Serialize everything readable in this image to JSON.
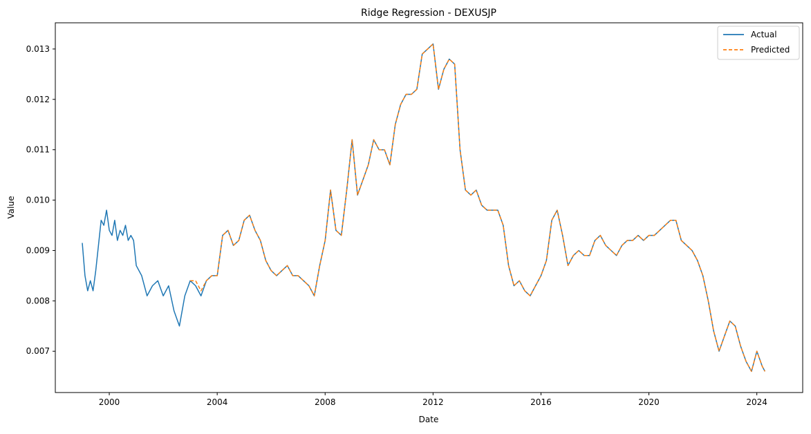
{
  "chart_data": {
    "type": "line",
    "title": "Ridge Regression - DEXUSJP",
    "xlabel": "Date",
    "ylabel": "Value",
    "xlim": [
      1998.0,
      2025.7
    ],
    "ylim": [
      0.00618,
      0.01352
    ],
    "x_ticks": [
      2000,
      2004,
      2008,
      2012,
      2016,
      2020,
      2024
    ],
    "x_tick_labels": [
      "2000",
      "2004",
      "2008",
      "2012",
      "2016",
      "2020",
      "2024"
    ],
    "y_ticks": [
      0.007,
      0.008,
      0.009,
      0.01,
      0.011,
      0.012,
      0.013
    ],
    "y_tick_labels": [
      "0.007",
      "0.008",
      "0.009",
      "0.010",
      "0.011",
      "0.012",
      "0.013"
    ],
    "grid": false,
    "legend": {
      "position": "top-right"
    },
    "series": [
      {
        "name": "Actual",
        "color": "#1f77b4",
        "style": "solid",
        "x": [
          1999.0,
          1999.1,
          1999.2,
          1999.3,
          1999.4,
          1999.5,
          1999.6,
          1999.7,
          1999.8,
          1999.9,
          2000.0,
          2000.1,
          2000.2,
          2000.3,
          2000.4,
          2000.5,
          2000.6,
          2000.7,
          2000.8,
          2000.9,
          2001.0,
          2001.2,
          2001.4,
          2001.6,
          2001.8,
          2002.0,
          2002.2,
          2002.4,
          2002.6,
          2002.8,
          2003.0,
          2003.2,
          2003.4,
          2003.6,
          2003.8,
          2004.0,
          2004.2,
          2004.4,
          2004.6,
          2004.8,
          2005.0,
          2005.2,
          2005.4,
          2005.6,
          2005.8,
          2006.0,
          2006.2,
          2006.4,
          2006.6,
          2006.8,
          2007.0,
          2007.2,
          2007.4,
          2007.6,
          2007.8,
          2008.0,
          2008.2,
          2008.4,
          2008.6,
          2008.8,
          2009.0,
          2009.2,
          2009.4,
          2009.6,
          2009.8,
          2010.0,
          2010.2,
          2010.4,
          2010.6,
          2010.8,
          2011.0,
          2011.2,
          2011.4,
          2011.6,
          2011.8,
          2012.0,
          2012.2,
          2012.4,
          2012.6,
          2012.8,
          2013.0,
          2013.2,
          2013.4,
          2013.6,
          2013.8,
          2014.0,
          2014.2,
          2014.4,
          2014.6,
          2014.8,
          2015.0,
          2015.2,
          2015.4,
          2015.6,
          2015.8,
          2016.0,
          2016.2,
          2016.4,
          2016.6,
          2016.8,
          2017.0,
          2017.2,
          2017.4,
          2017.6,
          2017.8,
          2018.0,
          2018.2,
          2018.4,
          2018.6,
          2018.8,
          2019.0,
          2019.2,
          2019.4,
          2019.6,
          2019.8,
          2020.0,
          2020.2,
          2020.4,
          2020.6,
          2020.8,
          2021.0,
          2021.2,
          2021.4,
          2021.6,
          2021.8,
          2022.0,
          2022.2,
          2022.4,
          2022.6,
          2022.8,
          2023.0,
          2023.2,
          2023.4,
          2023.6,
          2023.8,
          2024.0,
          2024.2,
          2024.3
        ],
        "y": [
          0.00915,
          0.0085,
          0.0082,
          0.0084,
          0.0082,
          0.0086,
          0.0091,
          0.0096,
          0.0095,
          0.0098,
          0.0094,
          0.0093,
          0.0096,
          0.0092,
          0.0094,
          0.0093,
          0.0095,
          0.0092,
          0.0093,
          0.0092,
          0.0087,
          0.0085,
          0.0081,
          0.0083,
          0.0084,
          0.0081,
          0.0083,
          0.0078,
          0.0075,
          0.0081,
          0.0084,
          0.0083,
          0.0081,
          0.0084,
          0.0085,
          0.0085,
          0.0093,
          0.0094,
          0.0091,
          0.0092,
          0.0096,
          0.0097,
          0.0094,
          0.0092,
          0.0088,
          0.0086,
          0.0085,
          0.0086,
          0.0087,
          0.0085,
          0.0085,
          0.0084,
          0.0083,
          0.0081,
          0.0087,
          0.0092,
          0.0102,
          0.0094,
          0.0093,
          0.0102,
          0.0112,
          0.0101,
          0.0104,
          0.0107,
          0.0112,
          0.011,
          0.011,
          0.0107,
          0.0115,
          0.0119,
          0.0121,
          0.0121,
          0.0122,
          0.0129,
          0.013,
          0.0131,
          0.0122,
          0.0126,
          0.0128,
          0.0127,
          0.011,
          0.0102,
          0.0101,
          0.0102,
          0.0099,
          0.0098,
          0.0098,
          0.0098,
          0.0095,
          0.0087,
          0.0083,
          0.0084,
          0.0082,
          0.0081,
          0.0083,
          0.0085,
          0.0088,
          0.0096,
          0.0098,
          0.0093,
          0.0087,
          0.0089,
          0.009,
          0.0089,
          0.0089,
          0.0092,
          0.0093,
          0.0091,
          0.009,
          0.0089,
          0.0091,
          0.0092,
          0.0092,
          0.0093,
          0.0092,
          0.0093,
          0.0093,
          0.0094,
          0.0095,
          0.0096,
          0.0096,
          0.0092,
          0.0091,
          0.009,
          0.0088,
          0.0085,
          0.008,
          0.0074,
          0.007,
          0.0073,
          0.0076,
          0.0075,
          0.0071,
          0.0068,
          0.0066,
          0.007,
          0.0067,
          0.0066
        ]
      },
      {
        "name": "Predicted",
        "color": "#ff7f0e",
        "style": "dashed",
        "x": [
          2003.0,
          2003.2,
          2003.4,
          2003.6,
          2003.8,
          2004.0,
          2004.2,
          2004.4,
          2004.6,
          2004.8,
          2005.0,
          2005.2,
          2005.4,
          2005.6,
          2005.8,
          2006.0,
          2006.2,
          2006.4,
          2006.6,
          2006.8,
          2007.0,
          2007.2,
          2007.4,
          2007.6,
          2007.8,
          2008.0,
          2008.2,
          2008.4,
          2008.6,
          2008.8,
          2009.0,
          2009.2,
          2009.4,
          2009.6,
          2009.8,
          2010.0,
          2010.2,
          2010.4,
          2010.6,
          2010.8,
          2011.0,
          2011.2,
          2011.4,
          2011.6,
          2011.8,
          2012.0,
          2012.2,
          2012.4,
          2012.6,
          2012.8,
          2013.0,
          2013.2,
          2013.4,
          2013.6,
          2013.8,
          2014.0,
          2014.2,
          2014.4,
          2014.6,
          2014.8,
          2015.0,
          2015.2,
          2015.4,
          2015.6,
          2015.8,
          2016.0,
          2016.2,
          2016.4,
          2016.6,
          2016.8,
          2017.0,
          2017.2,
          2017.4,
          2017.6,
          2017.8,
          2018.0,
          2018.2,
          2018.4,
          2018.6,
          2018.8,
          2019.0,
          2019.2,
          2019.4,
          2019.6,
          2019.8,
          2020.0,
          2020.2,
          2020.4,
          2020.6,
          2020.8,
          2021.0,
          2021.2,
          2021.4,
          2021.6,
          2021.8,
          2022.0,
          2022.2,
          2022.4,
          2022.6,
          2022.8,
          2023.0,
          2023.2,
          2023.4,
          2023.6,
          2023.8,
          2024.0,
          2024.2,
          2024.3
        ],
        "y": [
          0.0084,
          0.0084,
          0.0082,
          0.0084,
          0.0085,
          0.0085,
          0.0093,
          0.0094,
          0.0091,
          0.0092,
          0.0096,
          0.0097,
          0.0094,
          0.0092,
          0.0088,
          0.0086,
          0.0085,
          0.0086,
          0.0087,
          0.0085,
          0.0085,
          0.0084,
          0.0083,
          0.0081,
          0.0087,
          0.0092,
          0.0102,
          0.0094,
          0.0093,
          0.0102,
          0.0112,
          0.0101,
          0.0104,
          0.0107,
          0.0112,
          0.011,
          0.011,
          0.0107,
          0.0115,
          0.0119,
          0.0121,
          0.0121,
          0.0122,
          0.0129,
          0.013,
          0.0131,
          0.0122,
          0.0126,
          0.0128,
          0.0127,
          0.011,
          0.0102,
          0.0101,
          0.0102,
          0.0099,
          0.0098,
          0.0098,
          0.0098,
          0.0095,
          0.0087,
          0.0083,
          0.0084,
          0.0082,
          0.0081,
          0.0083,
          0.0085,
          0.0088,
          0.0096,
          0.0098,
          0.0093,
          0.0087,
          0.0089,
          0.009,
          0.0089,
          0.0089,
          0.0092,
          0.0093,
          0.0091,
          0.009,
          0.0089,
          0.0091,
          0.0092,
          0.0092,
          0.0093,
          0.0092,
          0.0093,
          0.0093,
          0.0094,
          0.0095,
          0.0096,
          0.0096,
          0.0092,
          0.0091,
          0.009,
          0.0088,
          0.0085,
          0.008,
          0.0074,
          0.007,
          0.0073,
          0.0076,
          0.0075,
          0.0071,
          0.0068,
          0.0066,
          0.007,
          0.0067,
          0.0066
        ]
      }
    ]
  }
}
